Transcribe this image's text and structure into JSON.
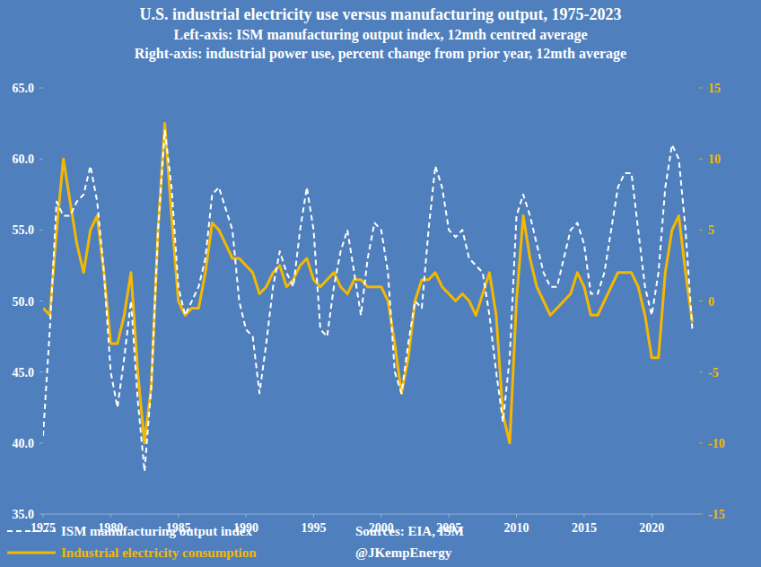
{
  "chart_data": {
    "type": "line",
    "title": "U.S. industrial electricity use versus manufacturing output, 1975-2023",
    "subtitle": [
      "Left-axis: ISM manufacturing output index, 12mth centred average",
      "Right-axis: industrial power use, percent change from prior year, 12mth average"
    ],
    "annotations": [
      "Sources: EIA, ISM",
      "@JKempEnergy"
    ],
    "x": [
      1975,
      1975.5,
      1976,
      1976.5,
      1977,
      1977.5,
      1978,
      1978.5,
      1979,
      1979.5,
      1980,
      1980.5,
      1981,
      1981.5,
      1982,
      1982.5,
      1983,
      1983.5,
      1984,
      1984.5,
      1985,
      1985.5,
      1986,
      1986.5,
      1987,
      1987.5,
      1988,
      1988.5,
      1989,
      1989.5,
      1990,
      1990.5,
      1991,
      1991.5,
      1992,
      1992.5,
      1993,
      1993.5,
      1994,
      1994.5,
      1995,
      1995.5,
      1996,
      1996.5,
      1997,
      1997.5,
      1998,
      1998.5,
      1999,
      1999.5,
      2000,
      2000.5,
      2001,
      2001.5,
      2002,
      2002.5,
      2003,
      2003.5,
      2004,
      2004.5,
      2005,
      2005.5,
      2006,
      2006.5,
      2007,
      2007.5,
      2008,
      2008.5,
      2009,
      2009.5,
      2010,
      2010.5,
      2011,
      2011.5,
      2012,
      2012.5,
      2013,
      2013.5,
      2014,
      2014.5,
      2015,
      2015.5,
      2016,
      2016.5,
      2017,
      2017.5,
      2018,
      2018.5,
      2019,
      2019.5,
      2020,
      2020.5,
      2021,
      2021.5,
      2022,
      2022.5,
      2023
    ],
    "series": [
      {
        "name": "ISM manufacturing output index",
        "color": "#ffffff",
        "line_style": "dashed",
        "values": [
          40.5,
          48,
          57,
          56,
          56,
          57,
          57.5,
          59.5,
          57,
          52,
          45,
          42.5,
          46,
          50,
          43,
          38,
          44,
          55,
          62,
          58,
          51,
          49,
          50,
          51,
          53,
          57.5,
          58,
          56.5,
          55,
          50,
          48,
          47.5,
          43.5,
          47,
          51,
          53.5,
          52,
          51,
          55,
          58,
          55,
          48,
          47.5,
          51,
          53.5,
          55,
          52,
          49,
          53,
          55.5,
          55,
          52,
          45,
          43.5,
          47,
          50,
          49.5,
          55,
          59.5,
          58,
          55,
          54.5,
          55,
          53,
          52.5,
          52,
          49,
          45,
          41.5,
          46,
          56,
          57.5,
          56,
          54,
          52,
          51,
          51,
          53,
          55,
          55.5,
          54,
          50.5,
          50.5,
          52,
          55,
          58,
          59,
          59,
          55,
          51,
          49,
          52,
          58,
          61,
          60,
          55,
          48
        ]
      },
      {
        "name": "Industrial electricity consumption",
        "color": "#f5b800",
        "line_style": "solid",
        "axis": "y2",
        "values": [
          -0.5,
          -1,
          5,
          10,
          7,
          4,
          2,
          5,
          6,
          2,
          -3,
          -3,
          -1,
          2,
          -5,
          -10,
          -6,
          5,
          12.5,
          6,
          0,
          -1,
          -0.5,
          -0.5,
          2,
          5.5,
          5,
          4,
          3,
          3,
          2.5,
          2,
          0.5,
          1,
          2,
          2.5,
          1,
          1.5,
          2.5,
          3,
          1.5,
          1,
          1.5,
          2,
          1,
          0.5,
          1.5,
          1.5,
          1,
          1,
          1,
          0,
          -3,
          -6.5,
          -4,
          0,
          1.5,
          1.5,
          2,
          1,
          0.5,
          0,
          0.5,
          0,
          -1,
          0.5,
          2,
          -1,
          -8,
          -10,
          0,
          6,
          3,
          1,
          0,
          -1,
          -0.5,
          0,
          0.5,
          2,
          1,
          -1,
          -1,
          0,
          1,
          2,
          2,
          2,
          1,
          -1,
          -4,
          -4,
          2,
          5,
          6,
          2,
          -1.5
        ]
      }
    ],
    "xlim": [
      1975,
      2023.5
    ],
    "xticks": [
      1975,
      1980,
      1985,
      1990,
      1995,
      2000,
      2005,
      2010,
      2015,
      2020
    ],
    "ylim": [
      35,
      65
    ],
    "yticks": [
      {
        "value": 35,
        "label": "35.0"
      },
      {
        "value": 40,
        "label": "40.0"
      },
      {
        "value": 45,
        "label": "45.0"
      },
      {
        "value": 50,
        "label": "50.0"
      },
      {
        "value": 55,
        "label": "55.0"
      },
      {
        "value": 60,
        "label": "60.0"
      },
      {
        "value": 65,
        "label": "65.0"
      }
    ],
    "y2lim": [
      -15,
      15
    ],
    "y2ticks": [
      -15,
      -10,
      -5,
      0,
      5,
      10,
      15
    ],
    "grid": false,
    "legend": "bottom"
  }
}
